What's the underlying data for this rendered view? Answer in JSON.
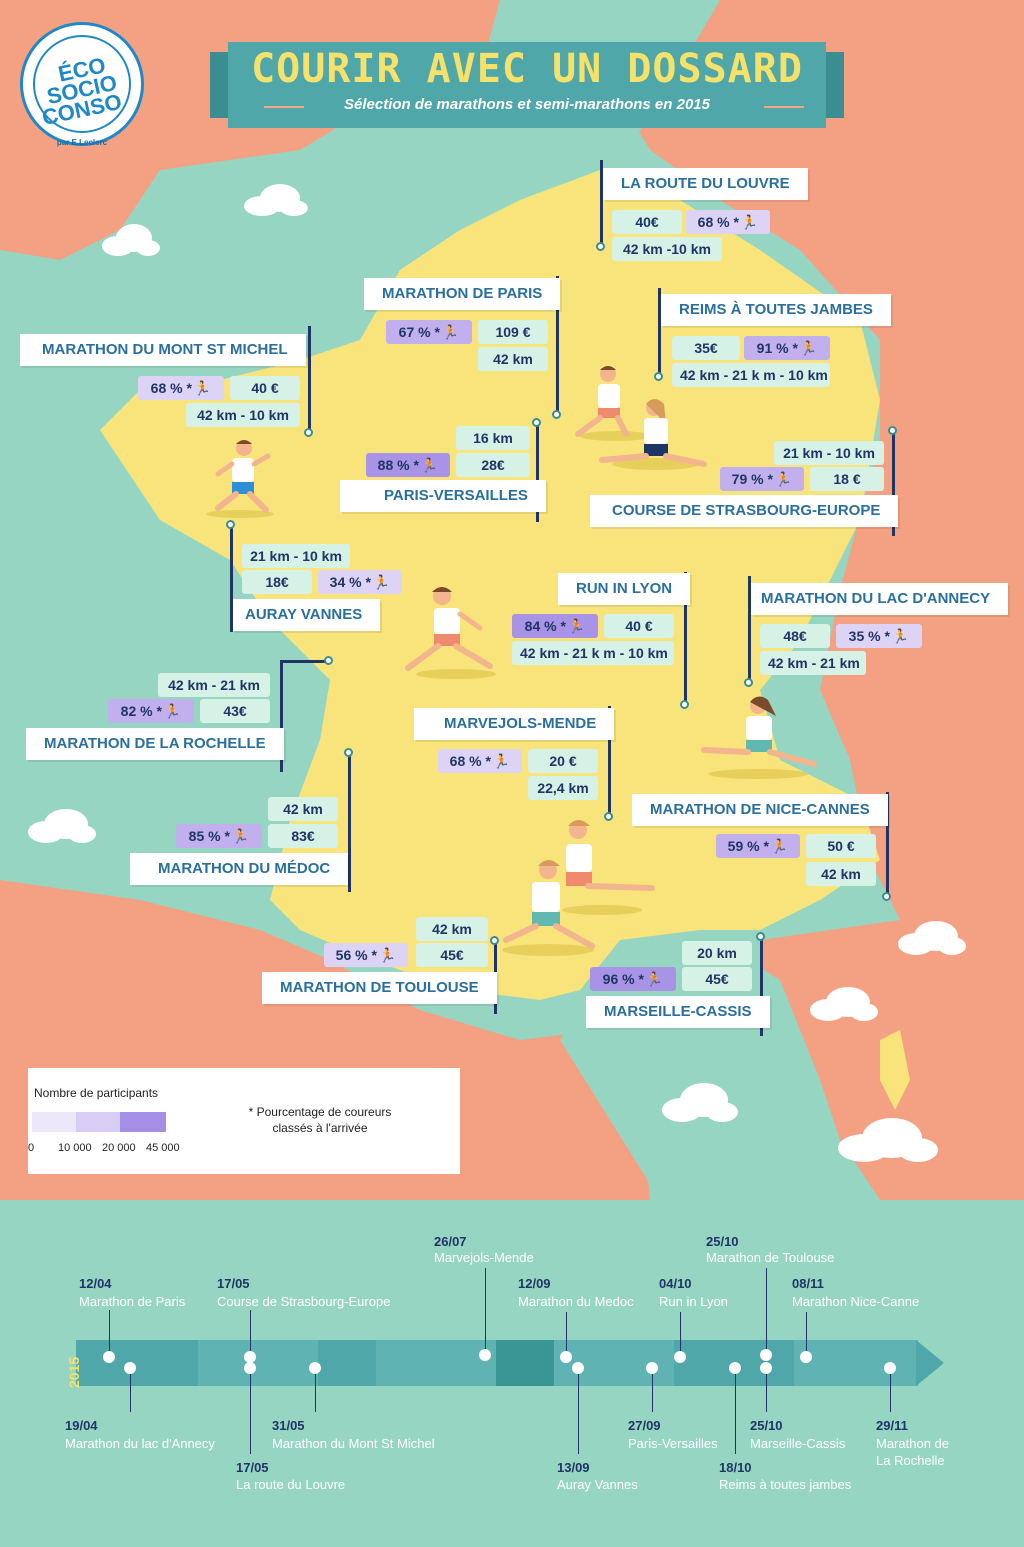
{
  "title": "COURIR AVEC UN DOSSARD",
  "subtitle": "Sélection de marathons et semi-marathons en 2015",
  "logo": {
    "line1": "ÉCO",
    "line2": "SOCIO",
    "line3": "CONSO",
    "par": "par E.Leclerc"
  },
  "races": {
    "louvre": {
      "name": "LA ROUTE DU LOUVRE",
      "eur": "40€",
      "pct": "68 % *",
      "km": "42 km  -10 km"
    },
    "paris": {
      "name": "MARATHON DE PARIS",
      "pct": "67 % *",
      "eur": "109 €",
      "km": "42 km"
    },
    "reims": {
      "name": "REIMS À TOUTES JAMBES",
      "eur": "35€",
      "pct": "91 % *",
      "km": "42 km - 21 k m - 10 km"
    },
    "montstmichel": {
      "name": "MARATHON DU MONT ST MICHEL",
      "pct": "68 % *",
      "eur": "40 €",
      "km": "42 km - 10 km"
    },
    "versailles": {
      "name": "PARIS-VERSAILLES",
      "km": "16 km",
      "pct": "88 % *",
      "eur": "28€"
    },
    "strasbourg": {
      "name": "COURSE DE STRASBOURG-EUROPE",
      "km": "21 km - 10 km",
      "pct": "79 % *",
      "eur": "18 €"
    },
    "auray": {
      "name": "AURAY VANNES",
      "km": "21 km - 10 km",
      "eur": "18€",
      "pct": "34 % *"
    },
    "lyon": {
      "name": "RUN IN LYON",
      "pct": "84 % *",
      "eur": "40 €",
      "km": "42 km - 21 k m - 10 km"
    },
    "annecy": {
      "name": "MARATHON DU LAC D'ANNECY",
      "eur": "48€",
      "pct": "35 % *",
      "km": "42 km - 21 km"
    },
    "rochelle": {
      "name": "MARATHON DE LA ROCHELLE",
      "km": "42 km - 21 km",
      "pct": "82 % *",
      "eur": "43€"
    },
    "mende": {
      "name": "MARVEJOLS-MENDE",
      "pct": "68 % *",
      "eur": "20  €",
      "km": "22,4 km"
    },
    "nice": {
      "name": "MARATHON DE NICE-CANNES",
      "pct": "59 % *",
      "eur": "50  €",
      "km": "42 km"
    },
    "medoc": {
      "name": "MARATHON DU MÉDOC",
      "km": "42 km",
      "pct": "85 % *",
      "eur": "83€"
    },
    "toulouse": {
      "name": "MARATHON DE TOULOUSE",
      "km": "42 km",
      "pct": "56 % *",
      "eur": "45€"
    },
    "cassis": {
      "name": "MARSEILLE-CASSIS",
      "km": "20 km",
      "pct": "96 % *",
      "eur": "45€"
    }
  },
  "legend": {
    "title": "Nombre de participants",
    "ticks": [
      "0",
      "10 000",
      "20 000",
      "45 000"
    ],
    "colors": [
      "#ece8fa",
      "#d8cdf5",
      "#bcaaee",
      "#a58ee6"
    ],
    "note": "* Pourcentage de coureurs classés à l'arrivée"
  },
  "timeline": {
    "year": "2015",
    "above": [
      {
        "date": "12/04",
        "event": "Marathon de Paris"
      },
      {
        "date": "17/05",
        "event": "Course de Strasbourg-Europe"
      },
      {
        "date": "26/07",
        "event": "Marvejols-Mende"
      },
      {
        "date": "12/09",
        "event": "Marathon du Medoc"
      },
      {
        "date": "04/10",
        "event": "Run in Lyon"
      },
      {
        "date": "25/10",
        "event": "Marathon de Toulouse"
      },
      {
        "date": "08/11",
        "event": "Marathon Nice-Canne"
      }
    ],
    "below": [
      {
        "date": "19/04",
        "event": "Marathon du lac d'Annecy"
      },
      {
        "date": "17/05",
        "event": "La route du Louvre"
      },
      {
        "date": "31/05",
        "event": "Marathon du Mont St Michel"
      },
      {
        "date": "13/09",
        "event": "Auray Vannes"
      },
      {
        "date": "27/09",
        "event": "Paris-Versailles"
      },
      {
        "date": "18/10",
        "event": "Reims à toutes jambes"
      },
      {
        "date": "25/10",
        "event": "Marseille-Cassis"
      },
      {
        "date": "29/11",
        "event": "Marathon de",
        "event2": "La Rochelle"
      }
    ]
  },
  "colors": {
    "sea": "#97d5c3",
    "neighbors": "#f4a183",
    "france": "#f8e47a",
    "banner": "#4fa7a9",
    "navy": "#1f3566"
  }
}
